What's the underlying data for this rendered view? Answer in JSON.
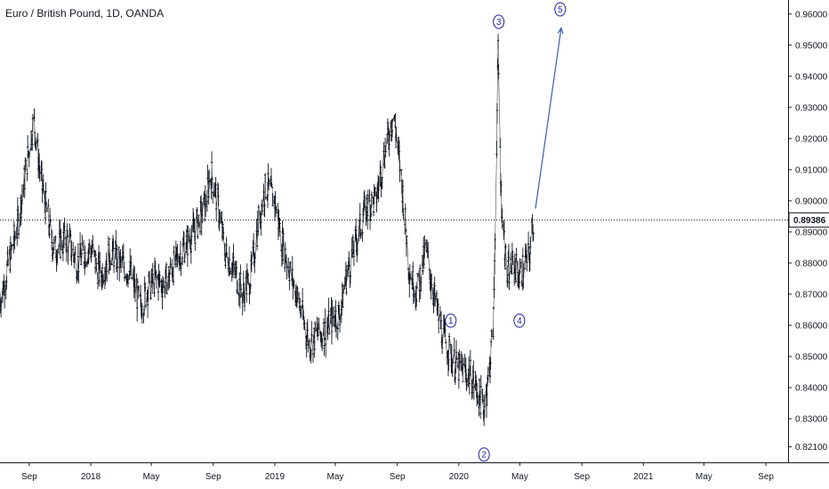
{
  "header": {
    "title": "Euro / British Pound, 1D, OANDA"
  },
  "colors": {
    "candle": "#131722",
    "wave": "#1e1ea0",
    "arrow": "#3b5fb0",
    "axis": "#131722",
    "price_line": "#131722"
  },
  "chart_data": {
    "type": "line",
    "title": "Euro / British Pound, 1D, OANDA",
    "instrument": "EUR/GBP",
    "x_tick_labels": [
      "Sep",
      "2018",
      "May",
      "Sep",
      "2019",
      "May",
      "Sep",
      "2020",
      "May",
      "Sep",
      "2021",
      "May",
      "Sep"
    ],
    "x_tick_dates": [
      "2017-09",
      "2018-01",
      "2018-05",
      "2018-09",
      "2019-01",
      "2019-05",
      "2019-09",
      "2020-01",
      "2020-05",
      "2020-09",
      "2021-01",
      "2021-05",
      "2021-09"
    ],
    "y_ticks": [
      0.821,
      0.83,
      0.84,
      0.85,
      0.86,
      0.87,
      0.88,
      0.89,
      0.9,
      0.91,
      0.92,
      0.93,
      0.94,
      0.95,
      0.96
    ],
    "ylim": [
      0.816,
      0.9645
    ],
    "xlim": [
      "2017-07-05",
      "2021-10-15"
    ],
    "current_price": "0.89386",
    "current_price_value": 0.89386,
    "series": [
      {
        "x": [
          "2017-07-05",
          "2017-07-25",
          "2017-08-10",
          "2017-08-29",
          "2017-09-10",
          "2017-09-25",
          "2017-10-20",
          "2017-11-15",
          "2017-12-05",
          "2018-01-01",
          "2018-01-20",
          "2018-02-10",
          "2018-03-01",
          "2018-03-20",
          "2018-04-10",
          "2018-04-25",
          "2018-05-10",
          "2018-05-25",
          "2018-06-15",
          "2018-07-05",
          "2018-07-25",
          "2018-08-15",
          "2018-08-28",
          "2018-09-10",
          "2018-09-25",
          "2018-10-10",
          "2018-10-30",
          "2018-11-15",
          "2018-12-01",
          "2018-12-15",
          "2019-01-01",
          "2019-01-15",
          "2019-02-01",
          "2019-02-20",
          "2019-03-11",
          "2019-03-25",
          "2019-04-10",
          "2019-04-25",
          "2019-05-10",
          "2019-05-25",
          "2019-06-15",
          "2019-07-01",
          "2019-07-20",
          "2019-08-11",
          "2019-08-25",
          "2019-09-10",
          "2019-09-25",
          "2019-10-10",
          "2019-10-28",
          "2019-11-15",
          "2019-12-01",
          "2019-12-13",
          "2019-12-25",
          "2020-01-10",
          "2020-01-25",
          "2020-02-10",
          "2020-02-19",
          "2020-03-01",
          "2020-03-10",
          "2020-03-19",
          "2020-03-25",
          "2020-04-05",
          "2020-04-20",
          "2020-05-01",
          "2020-05-10",
          "2020-05-20",
          "2020-05-28"
        ],
        "y": [
          0.868,
          0.882,
          0.893,
          0.914,
          0.926,
          0.906,
          0.884,
          0.888,
          0.88,
          0.885,
          0.876,
          0.884,
          0.88,
          0.877,
          0.866,
          0.872,
          0.875,
          0.873,
          0.879,
          0.885,
          0.89,
          0.898,
          0.909,
          0.899,
          0.883,
          0.879,
          0.87,
          0.876,
          0.895,
          0.905,
          0.9,
          0.887,
          0.877,
          0.866,
          0.854,
          0.857,
          0.858,
          0.862,
          0.864,
          0.877,
          0.889,
          0.898,
          0.9,
          0.919,
          0.928,
          0.906,
          0.878,
          0.871,
          0.884,
          0.868,
          0.856,
          0.852,
          0.847,
          0.845,
          0.844,
          0.838,
          0.833,
          0.844,
          0.862,
          0.948,
          0.902,
          0.876,
          0.88,
          0.875,
          0.88,
          0.882,
          0.894
        ]
      }
    ],
    "annotations": [
      {
        "label": "1",
        "date": "2019-12-16",
        "value": 0.8615
      },
      {
        "label": "2",
        "date": "2020-02-20",
        "value": 0.8185
      },
      {
        "label": "3",
        "date": "2020-03-20",
        "value": 0.9575
      },
      {
        "label": "4",
        "date": "2020-04-30",
        "value": 0.8615
      },
      {
        "label": "5",
        "date": "2020-07-20",
        "value": 0.9615
      }
    ],
    "projection": {
      "from": {
        "date": "2020-06-01",
        "value": 0.8975
      },
      "to": {
        "date": "2020-07-22",
        "value": 0.9555
      }
    }
  }
}
